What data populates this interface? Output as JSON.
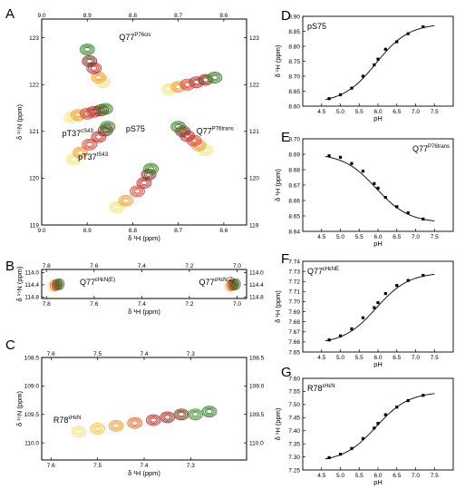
{
  "chart_data": [
    {
      "panel": "A",
      "type": "scatter",
      "xlabel": "δ ¹H (ppm)",
      "ylabel": "δ ¹⁵N (ppm)",
      "xlim": [
        9.0,
        8.55
      ],
      "ylim": [
        123.4,
        119.0
      ],
      "x_ticks": [
        9.0,
        8.9,
        8.8,
        8.7,
        8.6
      ],
      "y_ticks": [
        119,
        120,
        121,
        122,
        123
      ],
      "x_tick_labels": [
        "9.0",
        "8.9",
        "8.8",
        "8.7",
        "8.6"
      ],
      "y_tick_labels": [
        "119",
        "120",
        "121",
        "122",
        "123"
      ],
      "annotations": [
        {
          "base": "pT37",
          "sup": "tS43",
          "x": 8.92,
          "y": 120.4
        },
        {
          "base": "pT37",
          "sup": "cS43",
          "x": 8.955,
          "y": 120.9
        },
        {
          "base": "pS75",
          "sup": "",
          "x": 8.815,
          "y": 121.0
        },
        {
          "base": "Q77",
          "sup": "P76trans",
          "x": 8.66,
          "y": 120.95
        },
        {
          "base": "Q77",
          "sup": "P76cis",
          "x": 8.83,
          "y": 122.95
        }
      ],
      "peak_trajectories": [
        {
          "x": [
            8.835,
            8.815,
            8.79,
            8.775,
            8.765,
            8.76
          ],
          "y": [
            119.38,
            119.52,
            119.72,
            119.9,
            120.08,
            120.2
          ]
        },
        {
          "x": [
            8.93,
            8.915,
            8.895,
            8.875,
            8.86,
            8.855
          ],
          "y": [
            120.4,
            120.55,
            120.72,
            120.88,
            121.02,
            121.1
          ]
        },
        {
          "x": [
            8.935,
            8.92,
            8.9,
            8.885,
            8.87,
            8.86
          ],
          "y": [
            121.3,
            121.35,
            121.38,
            121.42,
            121.45,
            121.48
          ]
        },
        {
          "x": [
            8.64,
            8.655,
            8.665,
            8.68,
            8.69,
            8.7
          ],
          "y": [
            120.6,
            120.7,
            120.8,
            120.9,
            121.0,
            121.1
          ]
        },
        {
          "x": [
            8.72,
            8.7,
            8.68,
            8.66,
            8.64,
            8.62
          ],
          "y": [
            121.9,
            121.95,
            122.0,
            122.05,
            122.1,
            122.15
          ]
        },
        {
          "x": [
            8.865,
            8.875,
            8.885,
            8.895,
            8.9
          ],
          "y": [
            122.05,
            122.15,
            122.35,
            122.5,
            122.75
          ]
        }
      ]
    },
    {
      "panel": "B",
      "type": "scatter",
      "xlabel": "δ ¹H (ppm)",
      "ylabel": "δ ¹⁵N (ppm)",
      "xlim": [
        7.82,
        6.96
      ],
      "ylim": [
        113.9,
        114.85
      ],
      "x_ticks": [
        7.8,
        7.6,
        7.4,
        7.2,
        7.0
      ],
      "y_ticks": [
        114.0,
        114.4,
        114.8
      ],
      "x_tick_labels": [
        "7.8",
        "7.6",
        "7.4",
        "7.2",
        "7.0"
      ],
      "y_tick_labels": [
        "114.0",
        "114.4",
        "114.8"
      ],
      "annotations": [
        {
          "base": "Q77",
          "sup": "εHεN(E)",
          "x": 7.66,
          "y": 114.4
        },
        {
          "base": "Q77",
          "sup": "εHεN(Z)",
          "x": 7.16,
          "y": 114.4
        }
      ],
      "peak_trajectories": [
        {
          "x": [
            7.775,
            7.765,
            7.755,
            7.745
          ],
          "y": [
            114.45,
            114.42,
            114.4,
            114.38
          ]
        },
        {
          "x": [
            7.035,
            7.025,
            7.015,
            7.005
          ],
          "y": [
            114.45,
            114.42,
            114.4,
            114.38
          ]
        }
      ]
    },
    {
      "panel": "C",
      "type": "scatter",
      "xlabel": "δ ¹H (ppm)",
      "ylabel": "δ ¹⁵N (ppm)",
      "xlim": [
        7.62,
        7.18
      ],
      "ylim": [
        108.5,
        110.3
      ],
      "x_ticks": [
        7.6,
        7.5,
        7.4,
        7.3
      ],
      "y_ticks": [
        108.5,
        109.0,
        109.5,
        110.0
      ],
      "x_tick_labels": [
        "7.6",
        "7.5",
        "7.4",
        "7.3"
      ],
      "y_tick_labels": [
        "108.5",
        "109.0",
        "109.5",
        "110.0"
      ],
      "annotations": [
        {
          "base": "R78",
          "sup": "εHεN",
          "x": 7.595,
          "y": 109.65
        }
      ],
      "peak_trajectories": [
        {
          "x": [
            7.54,
            7.5,
            7.46,
            7.42,
            7.38,
            7.35,
            7.32,
            7.29,
            7.26
          ],
          "y": [
            109.8,
            109.75,
            109.7,
            109.65,
            109.6,
            109.55,
            109.5,
            109.5,
            109.45
          ]
        }
      ]
    },
    {
      "panel": "D",
      "type": "line",
      "title": "pS75",
      "xlabel": "pH",
      "ylabel": "δ ¹H (ppm)",
      "xlim": [
        4.0,
        8.0
      ],
      "ylim": [
        8.6,
        8.9
      ],
      "x_ticks": [
        4.5,
        5.0,
        5.5,
        6.0,
        6.5,
        7.0,
        7.5
      ],
      "y_ticks": [
        8.6,
        8.65,
        8.7,
        8.75,
        8.8,
        8.85,
        8.9
      ],
      "x_tick_labels": [
        "4.5",
        "5.0",
        "5.5",
        "6.0",
        "6.5",
        "7.0",
        "7.5"
      ],
      "y_tick_labels": [
        "8.60",
        "8.65",
        "8.70",
        "8.75",
        "8.80",
        "8.85",
        "8.90"
      ],
      "points": {
        "x": [
          4.7,
          5.0,
          5.3,
          5.6,
          5.9,
          6.0,
          6.2,
          6.5,
          6.8,
          7.2
        ],
        "y": [
          8.625,
          8.638,
          8.66,
          8.7,
          8.738,
          8.757,
          8.79,
          8.815,
          8.842,
          8.865
        ]
      },
      "fit": {
        "y_low": 8.611,
        "y_high": 8.876,
        "pka": 5.95,
        "x_range": [
          4.6,
          7.5
        ]
      }
    },
    {
      "panel": "E",
      "type": "line",
      "title": "Q77",
      "title_sup": "P76trans",
      "xlabel": "pH",
      "ylabel": "δ ¹H (ppm)",
      "xlim": [
        4.0,
        8.0
      ],
      "ylim": [
        8.64,
        8.7
      ],
      "x_ticks": [
        4.5,
        5.0,
        5.5,
        6.0,
        6.5,
        7.0,
        7.5
      ],
      "y_ticks": [
        8.64,
        8.65,
        8.66,
        8.67,
        8.68,
        8.69,
        8.7
      ],
      "x_tick_labels": [
        "4.5",
        "5.0",
        "5.5",
        "6.0",
        "6.5",
        "7.0",
        "7.5"
      ],
      "y_tick_labels": [
        "8.64",
        "8.65",
        "8.66",
        "8.67",
        "8.68",
        "8.69",
        "8.70"
      ],
      "points": {
        "x": [
          4.7,
          5.0,
          5.3,
          5.6,
          5.9,
          6.0,
          6.2,
          6.5,
          6.8,
          7.2
        ],
        "y": [
          8.689,
          8.688,
          8.684,
          8.679,
          8.671,
          8.668,
          8.662,
          8.656,
          8.652,
          8.648
        ]
      },
      "fit": {
        "y_low": 8.6455,
        "y_high": 8.6905,
        "pka": 5.95,
        "x_range": [
          4.6,
          7.5
        ],
        "decreasing": true
      }
    },
    {
      "panel": "F",
      "type": "line",
      "title": "Q77",
      "title_sup": "εHεNE",
      "xlabel": "pH",
      "ylabel": "δ ¹H (ppm)",
      "xlim": [
        4.0,
        8.0
      ],
      "ylim": [
        7.65,
        7.74
      ],
      "x_ticks": [
        4.5,
        5.0,
        5.5,
        6.0,
        6.5,
        7.0,
        7.5
      ],
      "y_ticks": [
        7.65,
        7.66,
        7.67,
        7.68,
        7.69,
        7.7,
        7.71,
        7.72,
        7.73,
        7.74
      ],
      "x_tick_labels": [
        "4.5",
        "5.0",
        "5.5",
        "6.0",
        "6.5",
        "7.0",
        "7.5"
      ],
      "y_tick_labels": [
        "7.65",
        "7.66",
        "7.67",
        "7.68",
        "7.69",
        "7.70",
        "7.71",
        "7.72",
        "7.73",
        "7.74"
      ],
      "points": {
        "x": [
          4.7,
          5.0,
          5.3,
          5.6,
          5.9,
          6.0,
          6.2,
          6.5,
          6.8,
          7.2
        ],
        "y": [
          7.662,
          7.666,
          7.673,
          7.684,
          7.694,
          7.699,
          7.708,
          7.716,
          7.721,
          7.726
        ]
      },
      "fit": {
        "y_low": 7.658,
        "y_high": 7.729,
        "pka": 5.95,
        "x_range": [
          4.6,
          7.5
        ]
      }
    },
    {
      "panel": "G",
      "type": "line",
      "title": "R78",
      "title_sup": "εHεN",
      "xlabel": "pH",
      "ylabel": "δ ¹H (ppm)",
      "xlim": [
        4.0,
        8.0
      ],
      "ylim": [
        7.25,
        7.6
      ],
      "x_ticks": [
        4.5,
        5.0,
        5.5,
        6.0,
        6.5,
        7.0,
        7.5
      ],
      "y_ticks": [
        7.25,
        7.3,
        7.35,
        7.4,
        7.45,
        7.5,
        7.55,
        7.6
      ],
      "x_tick_labels": [
        "4.5",
        "5.0",
        "5.5",
        "6.0",
        "6.5",
        "7.0",
        "7.5"
      ],
      "y_tick_labels": [
        "7.25",
        "7.30",
        "7.35",
        "7.40",
        "7.45",
        "7.50",
        "7.55",
        "7.60"
      ],
      "points": {
        "x": [
          4.7,
          5.0,
          5.3,
          5.6,
          5.9,
          6.0,
          6.2,
          6.5,
          6.8,
          7.2
        ],
        "y": [
          7.297,
          7.31,
          7.332,
          7.37,
          7.41,
          7.428,
          7.461,
          7.49,
          7.515,
          7.535
        ]
      },
      "fit": {
        "y_low": 7.281,
        "y_high": 7.549,
        "pka": 5.95,
        "x_range": [
          4.6,
          7.5
        ]
      }
    }
  ],
  "colors": {
    "ph_ramp": [
      "#f6e27a",
      "#f4c542",
      "#f29b2e",
      "#e8692a",
      "#d9422a",
      "#c02a28",
      "#9c2a1e",
      "#7a2a14",
      "#3e8d2b",
      "#2c7a1f"
    ],
    "axis": "#000000"
  }
}
